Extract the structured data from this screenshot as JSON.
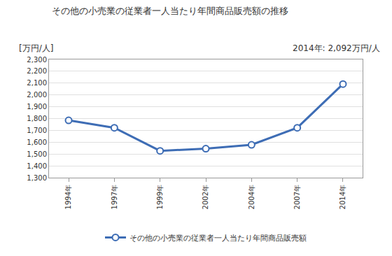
{
  "chart_data": {
    "type": "line",
    "title": "その他の小売業の従業者一人当たり年間商品販売額の推移",
    "y_label": "[万円/人]",
    "annotations": [
      "2014年: 2,092万円/人"
    ],
    "categories": [
      "1994年",
      "1997年",
      "1999年",
      "2002年",
      "2004年",
      "2007年",
      "2014年"
    ],
    "series": [
      {
        "name": "その他の小売業の従業者一人当たり年間商品販売額",
        "color": "#3e6db5",
        "values": [
          1785,
          1722,
          1527,
          1545,
          1578,
          1722,
          2092
        ]
      }
    ],
    "ylim": [
      1300,
      2300
    ],
    "yticks": [
      {
        "value": 1300,
        "label": "1,300"
      },
      {
        "value": 1400,
        "label": "1,400"
      },
      {
        "value": 1500,
        "label": "1,500"
      },
      {
        "value": 1600,
        "label": "1,600"
      },
      {
        "value": 1700,
        "label": "1,700"
      },
      {
        "value": 1800,
        "label": "1,800"
      },
      {
        "value": 1900,
        "label": "1,900"
      },
      {
        "value": 2000,
        "label": "2,000"
      },
      {
        "value": 2100,
        "label": "2,100"
      },
      {
        "value": 2200,
        "label": "2,200"
      },
      {
        "value": 2300,
        "label": "2,300"
      }
    ],
    "grid": true,
    "legend": "bottom",
    "marker": "circle",
    "line_style": "solid"
  }
}
